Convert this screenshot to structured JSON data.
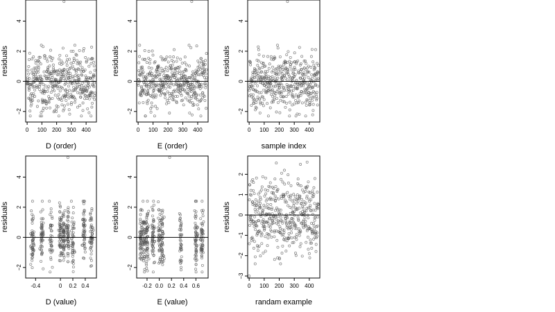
{
  "chart_data": [
    {
      "type": "scatter",
      "xlabel": "D (order)",
      "ylabel": "residuals",
      "xlim": [
        -10,
        470
      ],
      "ylim": [
        -2.7,
        5.4
      ],
      "xticks": [
        0,
        100,
        200,
        300,
        400
      ],
      "yticks": [
        -2,
        0,
        2,
        4
      ],
      "reference_line_y": 0,
      "distribution": "index",
      "n_points": 460,
      "outlier": {
        "x": 250,
        "y": 5.3
      },
      "spread_y": [
        -2.3,
        2.4
      ]
    },
    {
      "type": "scatter",
      "xlabel": "E (order)",
      "ylabel": "residuals",
      "xlim": [
        -10,
        470
      ],
      "ylim": [
        -2.7,
        5.4
      ],
      "xticks": [
        0,
        100,
        200,
        300,
        400
      ],
      "yticks": [
        -2,
        0,
        2,
        4
      ],
      "reference_line_y": 0,
      "distribution": "index",
      "n_points": 460,
      "outlier": {
        "x": 360,
        "y": 5.3
      },
      "spread_y": [
        -2.3,
        2.4
      ]
    },
    {
      "type": "scatter",
      "xlabel": "sample index",
      "ylabel": "residuals",
      "xlim": [
        -10,
        470
      ],
      "ylim": [
        -2.7,
        5.4
      ],
      "xticks": [
        0,
        100,
        200,
        300,
        400
      ],
      "yticks": [
        -2,
        0,
        2,
        4
      ],
      "reference_line_y": 0,
      "distribution": "index",
      "n_points": 460,
      "outlier": {
        "x": 255,
        "y": 5.3
      },
      "spread_y": [
        -2.3,
        2.4
      ]
    },
    {
      "type": "scatter",
      "xlabel": "D (value)",
      "ylabel": "residuals",
      "xlim": [
        -0.56,
        0.58
      ],
      "ylim": [
        -2.7,
        5.4
      ],
      "xticks": [
        -0.4,
        0,
        0.2,
        0.4
      ],
      "xtick_labels": [
        "-0.4",
        "0",
        "0.2",
        "0.4"
      ],
      "yticks": [
        -2,
        0,
        2,
        4
      ],
      "reference_line_y": 0,
      "distribution": "value_clusters",
      "clusters": [
        -0.45,
        -0.3,
        -0.15,
        0,
        0.05,
        0.12,
        0.2,
        0.38,
        0.5
      ],
      "n_points": 460,
      "outlier": {
        "x": 0.12,
        "y": 5.3
      },
      "spread_y": [
        -2.3,
        2.4
      ]
    },
    {
      "type": "scatter",
      "xlabel": "E (value)",
      "ylabel": "residuals",
      "xlim": [
        -0.37,
        0.8
      ],
      "ylim": [
        -2.7,
        5.4
      ],
      "xticks": [
        -0.2,
        0,
        0.2,
        0.4,
        0.6
      ],
      "xtick_labels": [
        "-0.2",
        "0.0",
        "0.2",
        "0.4",
        "0.6"
      ],
      "yticks": [
        -2,
        0,
        2,
        4
      ],
      "reference_line_y": 0,
      "distribution": "value_clusters",
      "clusters": [
        -0.3,
        -0.25,
        -0.2,
        -0.1,
        0,
        0.05,
        0.35,
        0.6,
        0.7
      ],
      "n_points": 460,
      "outlier": {
        "x": 0.17,
        "y": 5.3
      },
      "spread_y": [
        -2.3,
        2.4
      ]
    },
    {
      "type": "scatter",
      "xlabel": "randam example",
      "ylabel": "residuals",
      "xlim": [
        -10,
        470
      ],
      "ylim": [
        -3.1,
        2.9
      ],
      "xticks": [
        0,
        100,
        200,
        300,
        400
      ],
      "yticks": [
        -3,
        -2,
        -1,
        0,
        1,
        2
      ],
      "reference_line_y": 0,
      "distribution": "index",
      "n_points": 460,
      "outlier": {
        "x": 0,
        "y": -3.0
      },
      "spread_y": [
        -2.4,
        2.6
      ]
    }
  ]
}
